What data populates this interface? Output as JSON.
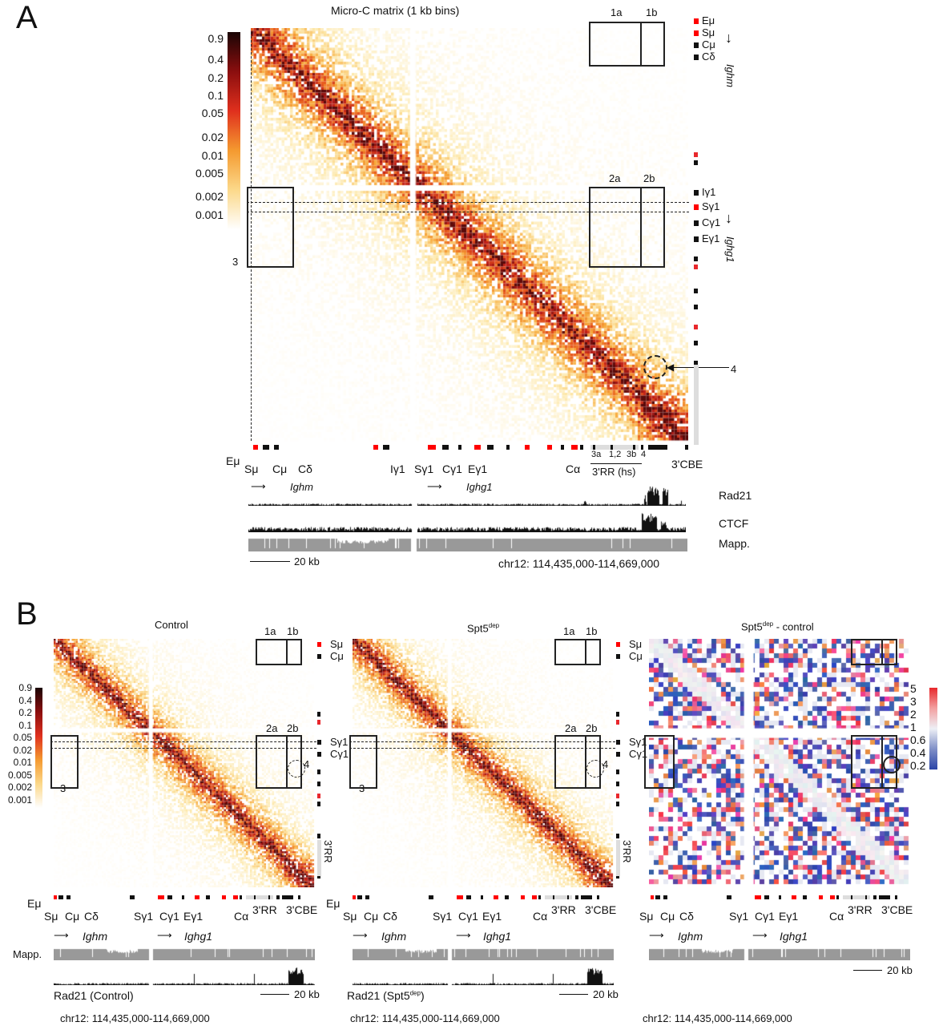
{
  "panelA": {
    "label": "A",
    "title": "Micro-C matrix (1 kb bins)",
    "colorbar_ticks": [
      "0.9",
      "0.4",
      "0.2",
      "0.1",
      "0.05",
      "0.02",
      "0.01",
      "0.005",
      "0.002",
      "0.001"
    ],
    "boxes": [
      "1a",
      "1b",
      "2a",
      "2b",
      "3"
    ],
    "loop_label": "4",
    "right_labels": [
      "Eμ",
      "Sμ",
      "Cμ",
      "Cδ",
      "Iγ1",
      "Sγ1",
      "Cγ1",
      "Eγ1"
    ],
    "gene_ighm": "Ighm",
    "gene_ighg1": "Ighg1",
    "bottom_labels": [
      "Eμ",
      "Sμ",
      "Cμ",
      "Cδ",
      "Iγ1",
      "Sγ1",
      "Cγ1",
      "Eγ1",
      "Cα",
      "3'CBE"
    ],
    "hs_labels": [
      "3a",
      "1,2",
      "3b",
      "4"
    ],
    "rr_label": "3'RR (hs)",
    "tracks": [
      "Rad21",
      "CTCF",
      "Mapp."
    ],
    "scale": "20 kb",
    "coords": "chr12: 114,435,000-114,669,000"
  },
  "panelB": {
    "label": "B",
    "titles": [
      "Control",
      "Spt5",
      "dep",
      "Spt5",
      "dep",
      " - control"
    ],
    "colorbar_ticks": [
      "0.9",
      "0.4",
      "0.2",
      "0.1",
      "0.05",
      "0.02",
      "0.01",
      "0.005",
      "0.002",
      "0.001"
    ],
    "diff_ticks": [
      "5",
      "3",
      "2",
      "1",
      "0.6",
      "0.4",
      "0.2"
    ],
    "boxes": [
      "1a",
      "1b",
      "2a",
      "2b",
      "3",
      "4"
    ],
    "right_labels": [
      "Sμ",
      "Cμ",
      "Sγ1",
      "Cγ1",
      "3'RR"
    ],
    "bottom_labels": [
      "Eμ",
      "Sμ",
      "Cμ",
      "Cδ",
      "Sγ1",
      "Cγ1",
      "Eγ1",
      "Cα",
      "3'RR",
      "3'CBE"
    ],
    "genes": [
      "Ighm",
      "Ighg1"
    ],
    "mapp": "Mapp.",
    "rad21_control": "Rad21 (Control)",
    "rad21_spt5": "Rad21 (Spt5",
    "dep": "dep",
    "scale": "20 kb",
    "coords": "chr12: 114,435,000-114,669,000"
  },
  "colors": {
    "heat_low": "#fbe7b0",
    "heat_mid": "#f08a24",
    "heat_high": "#8b0f0f",
    "diff_up": "#e8282c",
    "diff_down": "#2b45a8",
    "gene_red": "#e8282c",
    "gene_black": "#111111",
    "mapp": "#999999"
  }
}
